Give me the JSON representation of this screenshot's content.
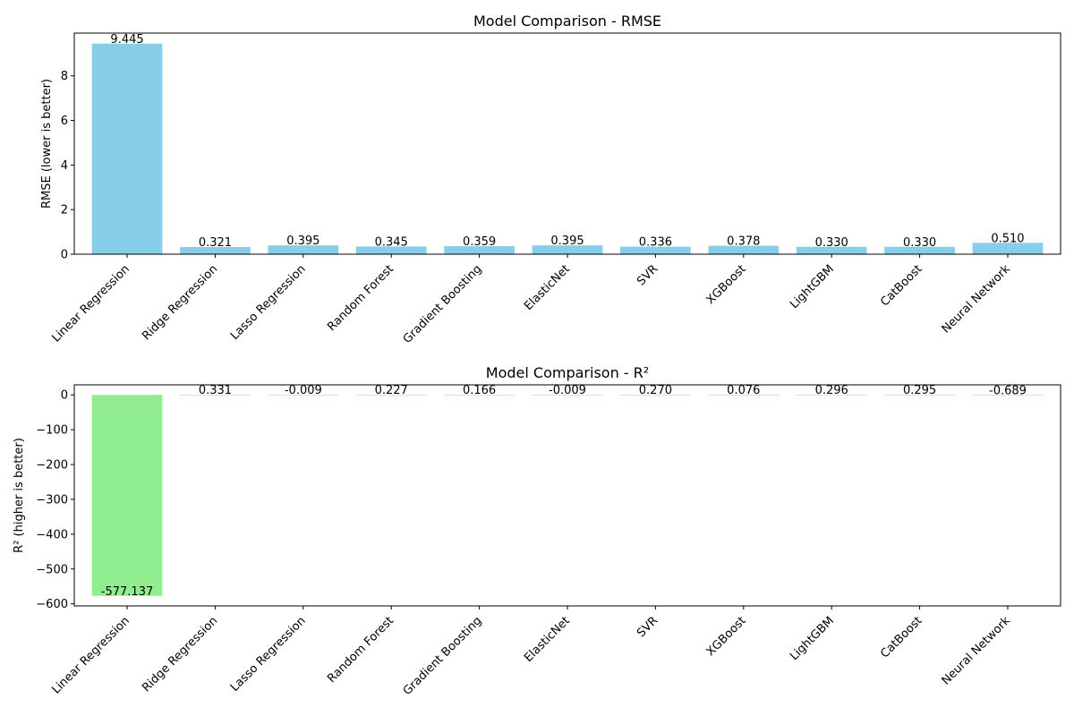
{
  "colors": {
    "rmse_bar": "#87CEEB",
    "r2_bar": "#90EE90",
    "axis": "#000000"
  },
  "chart_data": [
    {
      "type": "bar",
      "title": "Model Comparison - RMSE",
      "xlabel": "",
      "ylabel": "RMSE (lower is better)",
      "categories": [
        "Linear Regression",
        "Ridge Regression",
        "Lasso Regression",
        "Random Forest",
        "Gradient Boosting",
        "ElasticNet",
        "SVR",
        "XGBoost",
        "LightGBM",
        "CatBoost",
        "Neural Network"
      ],
      "values": [
        9.445,
        0.321,
        0.395,
        0.345,
        0.359,
        0.395,
        0.336,
        0.378,
        0.33,
        0.33,
        0.51
      ],
      "value_labels": [
        "9.445",
        "0.321",
        "0.395",
        "0.345",
        "0.359",
        "0.395",
        "0.336",
        "0.378",
        "0.330",
        "0.330",
        "0.510"
      ],
      "ylim": [
        0,
        9.917
      ],
      "yticks": [
        0,
        2,
        4,
        6,
        8
      ],
      "ytick_labels": [
        "0",
        "2",
        "4",
        "6",
        "8"
      ],
      "grid": false
    },
    {
      "type": "bar",
      "title": "Model Comparison - R²",
      "xlabel": "",
      "ylabel": "R² (higher is better)",
      "categories": [
        "Linear Regression",
        "Ridge Regression",
        "Lasso Regression",
        "Random Forest",
        "Gradient Boosting",
        "ElasticNet",
        "SVR",
        "XGBoost",
        "LightGBM",
        "CatBoost",
        "Neural Network"
      ],
      "values": [
        -577.137,
        0.331,
        -0.009,
        0.227,
        0.166,
        -0.009,
        0.27,
        0.076,
        0.296,
        0.295,
        -0.689
      ],
      "value_labels": [
        "-577.137",
        "0.331",
        "-0.009",
        "0.227",
        "0.166",
        "-0.009",
        "0.270",
        "0.076",
        "0.296",
        "0.295",
        "-0.689"
      ],
      "ylim": [
        -605.99,
        28.86
      ],
      "yticks": [
        0,
        -100,
        -200,
        -300,
        -400,
        -500,
        -600
      ],
      "ytick_labels": [
        "0",
        "−100",
        "−200",
        "−300",
        "−400",
        "−500",
        "−600"
      ],
      "grid": false
    }
  ]
}
